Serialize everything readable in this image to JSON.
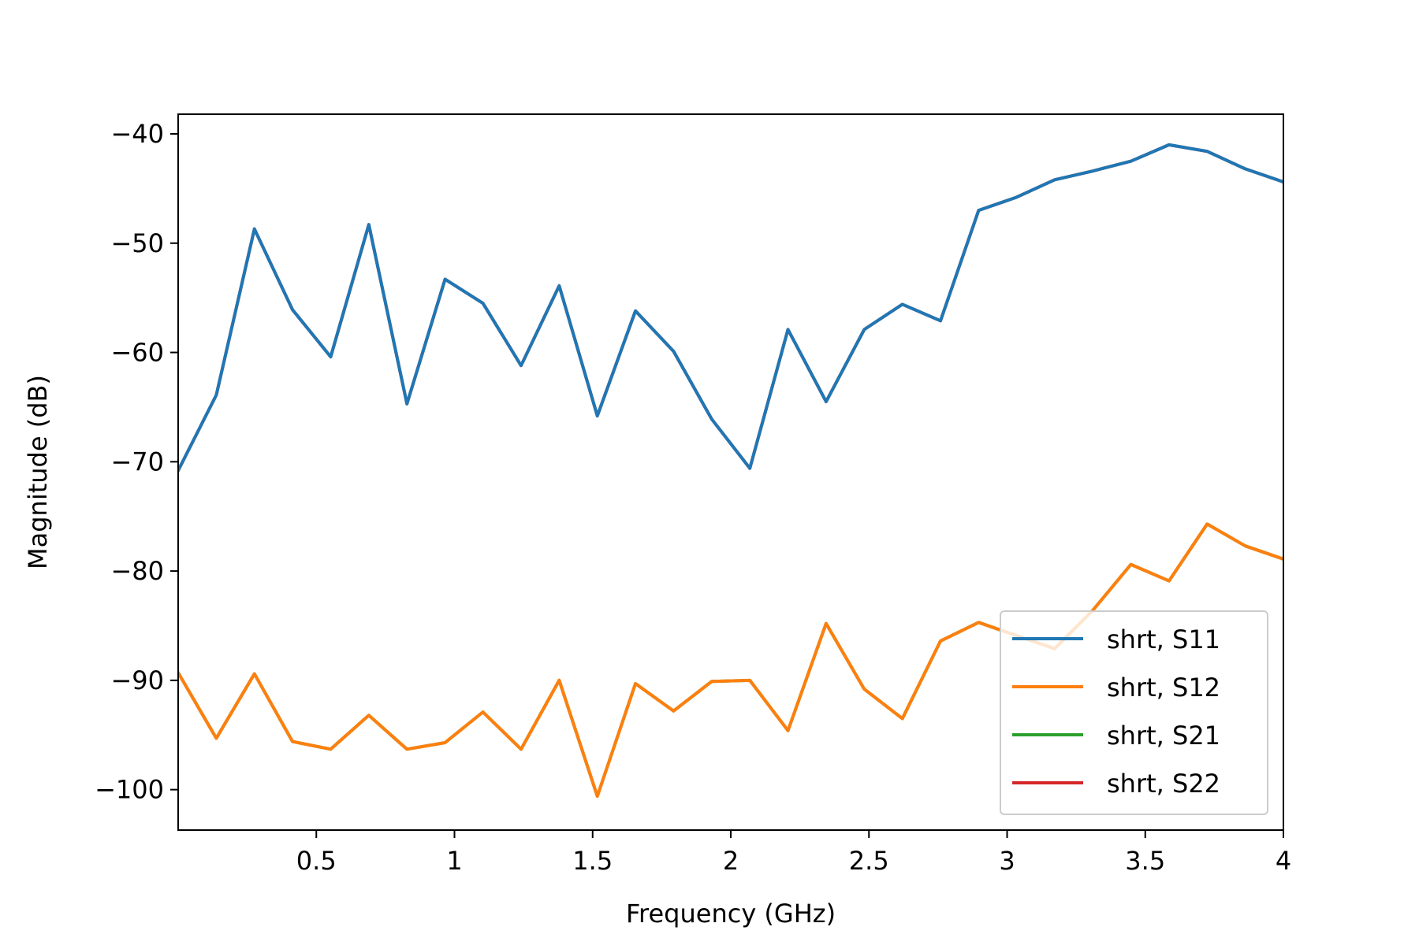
{
  "chart_data": {
    "type": "line",
    "title": "",
    "xlabel": "Frequency (GHz)",
    "ylabel": "Magnitude (dB)",
    "xlim": [
      0.0,
      4.0
    ],
    "ylim": [
      -103.7,
      -38.2
    ],
    "xticks": [
      0.5,
      1,
      1.5,
      2,
      2.5,
      3,
      3.5,
      4
    ],
    "xtick_labels": [
      "0.5",
      "1",
      "1.5",
      "2",
      "2.5",
      "3",
      "3.5",
      "4"
    ],
    "yticks": [
      -40,
      -50,
      -60,
      -70,
      -80,
      -90,
      -100
    ],
    "ytick_labels": [
      "−40",
      "−50",
      "−60",
      "−70",
      "−80",
      "−90",
      "−100"
    ],
    "grid": false,
    "legend_position": "lower-right",
    "x": [
      0.0,
      0.138,
      0.276,
      0.414,
      0.552,
      0.69,
      0.828,
      0.966,
      1.103,
      1.241,
      1.379,
      1.517,
      1.655,
      1.793,
      1.931,
      2.069,
      2.207,
      2.345,
      2.483,
      2.621,
      2.759,
      2.897,
      3.034,
      3.172,
      3.31,
      3.448,
      3.586,
      3.724,
      3.862,
      4.0
    ],
    "series": [
      {
        "name": "shrt, S11",
        "color": "#1f77b4",
        "values": [
          -70.8,
          -63.9,
          -48.7,
          -56.1,
          -60.4,
          -48.3,
          -64.7,
          -53.3,
          -55.5,
          -61.2,
          -53.9,
          -65.8,
          -56.2,
          -59.9,
          -66.1,
          -70.6,
          -57.9,
          -64.5,
          -57.9,
          -55.6,
          -57.1,
          -47.0,
          -45.8,
          -44.2,
          -43.4,
          -42.5,
          -41.0,
          -41.6,
          -43.2,
          -44.4
        ]
      },
      {
        "name": "shrt, S12",
        "color": "#ff7f0e",
        "values": [
          -89.3,
          -95.3,
          -89.4,
          -95.6,
          -96.3,
          -93.2,
          -96.3,
          -95.7,
          -92.9,
          -96.3,
          -90.0,
          -100.6,
          -90.3,
          -92.8,
          -90.1,
          -90.0,
          -94.6,
          -84.8,
          -90.8,
          -93.5,
          -86.4,
          -84.7,
          -85.9,
          -87.1,
          -83.6,
          -79.4,
          -80.9,
          -75.7,
          -77.7,
          -78.9
        ]
      },
      {
        "name": "shrt, S21",
        "color": "#2ca02c",
        "values": [
          -89.3,
          -95.3,
          -89.4,
          -95.6,
          -96.3,
          -93.2,
          -96.3,
          -95.7,
          -92.9,
          -96.3,
          -90.0,
          -100.6,
          -90.3,
          -92.8,
          -90.1,
          -90.0,
          -94.6,
          -84.8,
          -90.8,
          -93.5,
          -86.4,
          -84.7,
          -85.9,
          -87.1,
          -83.6,
          -79.4,
          -80.9,
          -75.7,
          -77.7,
          -78.9
        ]
      },
      {
        "name": "shrt, S22",
        "color": "#d62728",
        "values": [
          -70.8,
          -63.9,
          -48.7,
          -56.1,
          -60.4,
          -48.3,
          -64.7,
          -53.3,
          -55.5,
          -61.2,
          -53.9,
          -65.8,
          -56.2,
          -59.9,
          -66.1,
          -70.6,
          -57.9,
          -64.5,
          -57.9,
          -55.6,
          -57.1,
          -47.0,
          -45.8,
          -44.2,
          -43.4,
          -42.5,
          -41.0,
          -41.6,
          -43.2,
          -44.4
        ]
      }
    ]
  }
}
